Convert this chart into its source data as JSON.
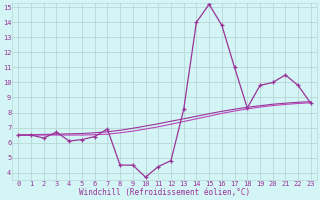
{
  "xlabel": "Windchill (Refroidissement éolien,°C)",
  "background_color": "#d4f5f5",
  "grid_color": "#b8d8d8",
  "line_color": "#993399",
  "line_color2": "#bb44bb",
  "x": [
    0,
    1,
    2,
    3,
    4,
    5,
    6,
    7,
    8,
    9,
    10,
    11,
    12,
    13,
    14,
    15,
    16,
    17,
    18,
    19,
    20,
    21,
    22,
    23
  ],
  "y_main": [
    6.5,
    6.5,
    6.3,
    6.7,
    6.1,
    6.2,
    6.4,
    6.9,
    4.5,
    4.5,
    3.7,
    4.4,
    4.8,
    8.2,
    14.0,
    15.2,
    13.8,
    11.0,
    8.3,
    9.8,
    10.0,
    10.5,
    9.8,
    8.6
  ],
  "y_line2": [
    6.5,
    6.52,
    6.54,
    6.56,
    6.58,
    6.6,
    6.65,
    6.72,
    6.82,
    6.95,
    7.1,
    7.25,
    7.42,
    7.58,
    7.75,
    7.92,
    8.08,
    8.22,
    8.35,
    8.45,
    8.55,
    8.62,
    8.68,
    8.72
  ],
  "y_line3": [
    6.5,
    6.5,
    6.5,
    6.5,
    6.5,
    6.5,
    6.52,
    6.56,
    6.65,
    6.76,
    6.9,
    7.05,
    7.22,
    7.4,
    7.58,
    7.76,
    7.94,
    8.1,
    8.24,
    8.36,
    8.46,
    8.54,
    8.6,
    8.65
  ],
  "ylim_min": 3.5,
  "ylim_max": 15.3,
  "yticks": [
    4,
    5,
    6,
    7,
    8,
    9,
    10,
    11,
    12,
    13,
    14,
    15
  ],
  "xticks": [
    0,
    1,
    2,
    3,
    4,
    5,
    6,
    7,
    8,
    9,
    10,
    11,
    12,
    13,
    14,
    15,
    16,
    17,
    18,
    19,
    20,
    21,
    22,
    23
  ],
  "xlabel_fontsize": 5.5,
  "tick_fontsize": 5.0
}
